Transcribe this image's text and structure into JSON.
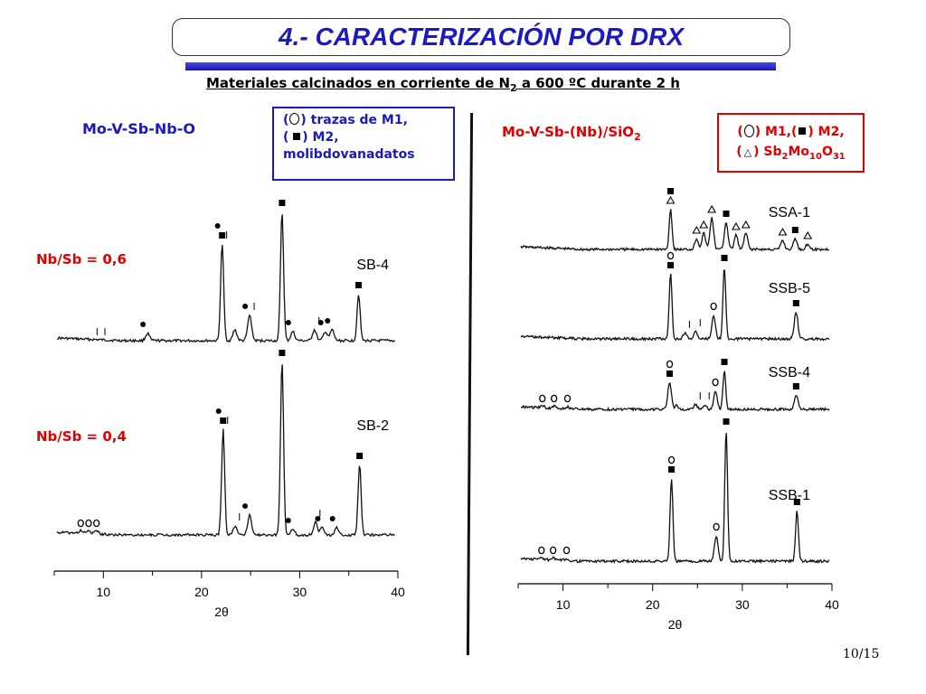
{
  "title": "4.- CARACTERIZACIÓN POR DRX",
  "subtitle": {
    "before": "Materiales calcinados en corriente de N",
    "sub": "2",
    "after": " a 600 ºC durante 2 h"
  },
  "left_panel": {
    "heading": "Mo-V-Sb-Nb-O",
    "legend": {
      "line1": ") trazas de M1,",
      "line2": ") M2,",
      "line3": "molibdovanadatos"
    },
    "ratio_top": "Nb/Sb = 0,6",
    "ratio_bottom": "Nb/Sb = 0,4"
  },
  "right_panel": {
    "heading_main": "Mo-V-Sb-(Nb)/SiO",
    "heading_sub": "2",
    "legend": {
      "line1_a": ") M1,(",
      "line1_b": ") M2,",
      "line2_a": ") Sb",
      "line2_b": "2",
      "line2_c": "Mo",
      "line2_d": "10",
      "line2_e": "O",
      "line2_f": "31"
    }
  },
  "page_number": "10/15",
  "colors": {
    "title": "#1a1ac0",
    "red": "#e00000",
    "blue": "#1a1ac0"
  },
  "chart_data": [
    {
      "type": "line",
      "panel": "left",
      "xlabel": "2θ",
      "xlim": [
        5,
        40
      ],
      "xticks": [
        "10",
        "20",
        "30",
        "40"
      ],
      "series": [
        {
          "name": "SB-4",
          "peaks_2theta": [
            14.5,
            22.1,
            23.4,
            24.9,
            28.2,
            29.3,
            31.5,
            32.6,
            33.3,
            36.0
          ]
        },
        {
          "name": "SB-2",
          "peaks_2theta": [
            7.7,
            8.5,
            9.3,
            22.2,
            23.4,
            24.9,
            28.2,
            29.3,
            31.6,
            32.3,
            33.8,
            36.1
          ]
        }
      ]
    },
    {
      "type": "line",
      "panel": "right",
      "xlabel": "2θ",
      "xlim": [
        5,
        40
      ],
      "xticks": [
        "10",
        "20",
        "30",
        "40"
      ],
      "series": [
        {
          "name": "SSA-1",
          "peaks_2theta": [
            22.0,
            24.9,
            25.7,
            26.6,
            28.2,
            29.3,
            30.4,
            34.5,
            35.9,
            37.3
          ]
        },
        {
          "name": "SSB-5",
          "peaks_2theta": [
            22.0,
            23.6,
            24.8,
            26.8,
            28.0,
            36.0
          ]
        },
        {
          "name": "SSB-4",
          "peaks_2theta": [
            7.7,
            9.0,
            10.5,
            21.9,
            22.7,
            24.8,
            25.8,
            27.0,
            28.0,
            36.0
          ]
        },
        {
          "name": "SSB-1",
          "peaks_2theta": [
            7.6,
            8.9,
            10.4,
            22.1,
            27.1,
            28.2,
            36.1
          ]
        }
      ]
    }
  ]
}
